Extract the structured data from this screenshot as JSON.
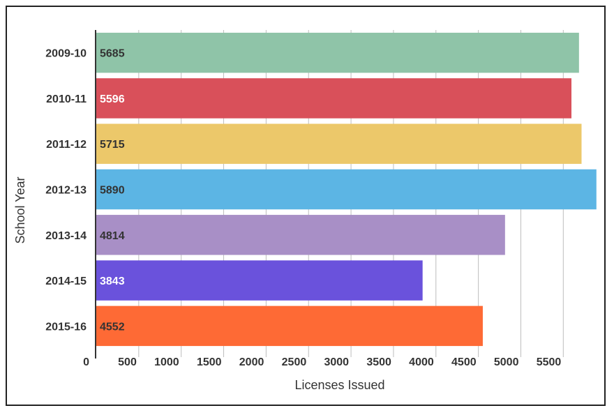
{
  "chart_data": {
    "type": "bar",
    "orientation": "horizontal",
    "title": "",
    "xlabel": "Licenses Issued",
    "ylabel": "School Year",
    "categories": [
      "2009-10",
      "2010-11",
      "2011-12",
      "2012-13",
      "2013-14",
      "2014-15",
      "2015-16"
    ],
    "values": [
      5685,
      5596,
      5715,
      5890,
      4814,
      3843,
      4552
    ],
    "value_labels": [
      "5685",
      "5596",
      "5715",
      "5890",
      "4814",
      "3843",
      "4552"
    ],
    "bar_colors": [
      "#8fc4a8",
      "#d9505a",
      "#ecc86a",
      "#5cb5e4",
      "#a88fc6",
      "#6a52dc",
      "#fe6a35"
    ],
    "label_colors": [
      "#333333",
      "#ffffff",
      "#333333",
      "#333333",
      "#333333",
      "#ffffff",
      "#333333"
    ],
    "xticks": [
      0,
      500,
      1000,
      1500,
      2000,
      2500,
      3000,
      3500,
      4000,
      4500,
      5000,
      5500
    ],
    "xtick_labels": [
      "0",
      "500",
      "1000",
      "1500",
      "2000",
      "2500",
      "3000",
      "3500",
      "4000",
      "4500",
      "5000",
      "5500"
    ],
    "xlim": [
      0,
      5900
    ],
    "grid": true,
    "legend": "none"
  }
}
